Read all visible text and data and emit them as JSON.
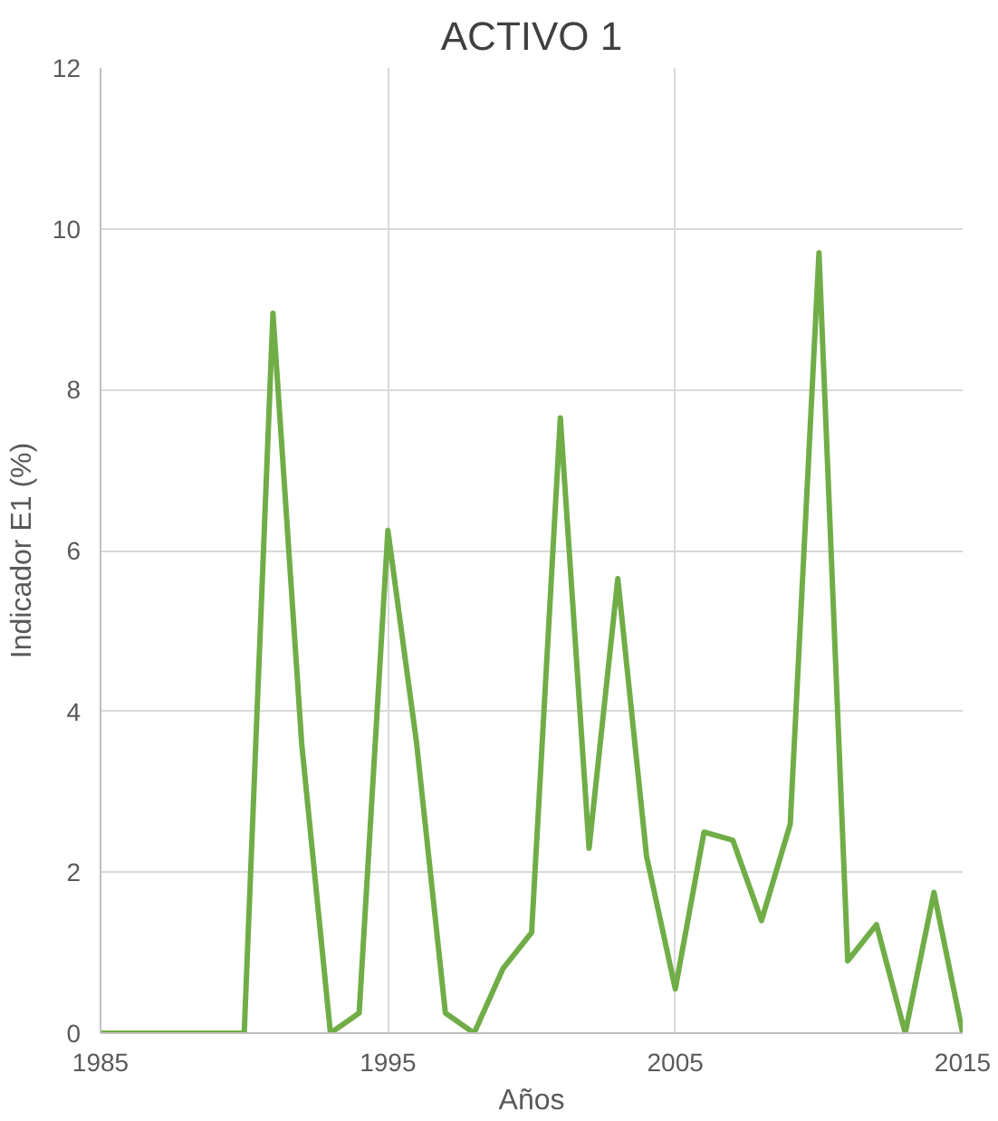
{
  "chart_data": {
    "type": "line",
    "title": "ACTIVO 1",
    "xlabel": "Años",
    "ylabel": "Indicador E1 (%)",
    "x": [
      1985,
      1986,
      1987,
      1988,
      1989,
      1990,
      1991,
      1992,
      1993,
      1994,
      1995,
      1996,
      1997,
      1998,
      1999,
      2000,
      2001,
      2002,
      2003,
      2004,
      2005,
      2006,
      2007,
      2008,
      2009,
      2010,
      2011,
      2012,
      2013,
      2014,
      2015
    ],
    "series": [
      {
        "color": "#70ad47",
        "values": [
          0,
          0,
          0,
          0,
          0,
          0,
          8.95,
          3.6,
          0,
          0.25,
          6.25,
          3.6,
          0.25,
          0,
          0.8,
          1.25,
          7.65,
          2.3,
          5.65,
          2.2,
          0.55,
          2.5,
          2.4,
          1.4,
          2.6,
          9.7,
          0.9,
          1.35,
          0,
          1.75,
          0
        ]
      }
    ],
    "xlim": [
      1985,
      2015
    ],
    "xticks": [
      1985,
      1995,
      2005,
      2015
    ],
    "ylim": [
      0,
      12
    ],
    "yticks": [
      0,
      2,
      4,
      6,
      8,
      10,
      12
    ],
    "grid": true,
    "marker": "none",
    "line_style": "solid"
  }
}
